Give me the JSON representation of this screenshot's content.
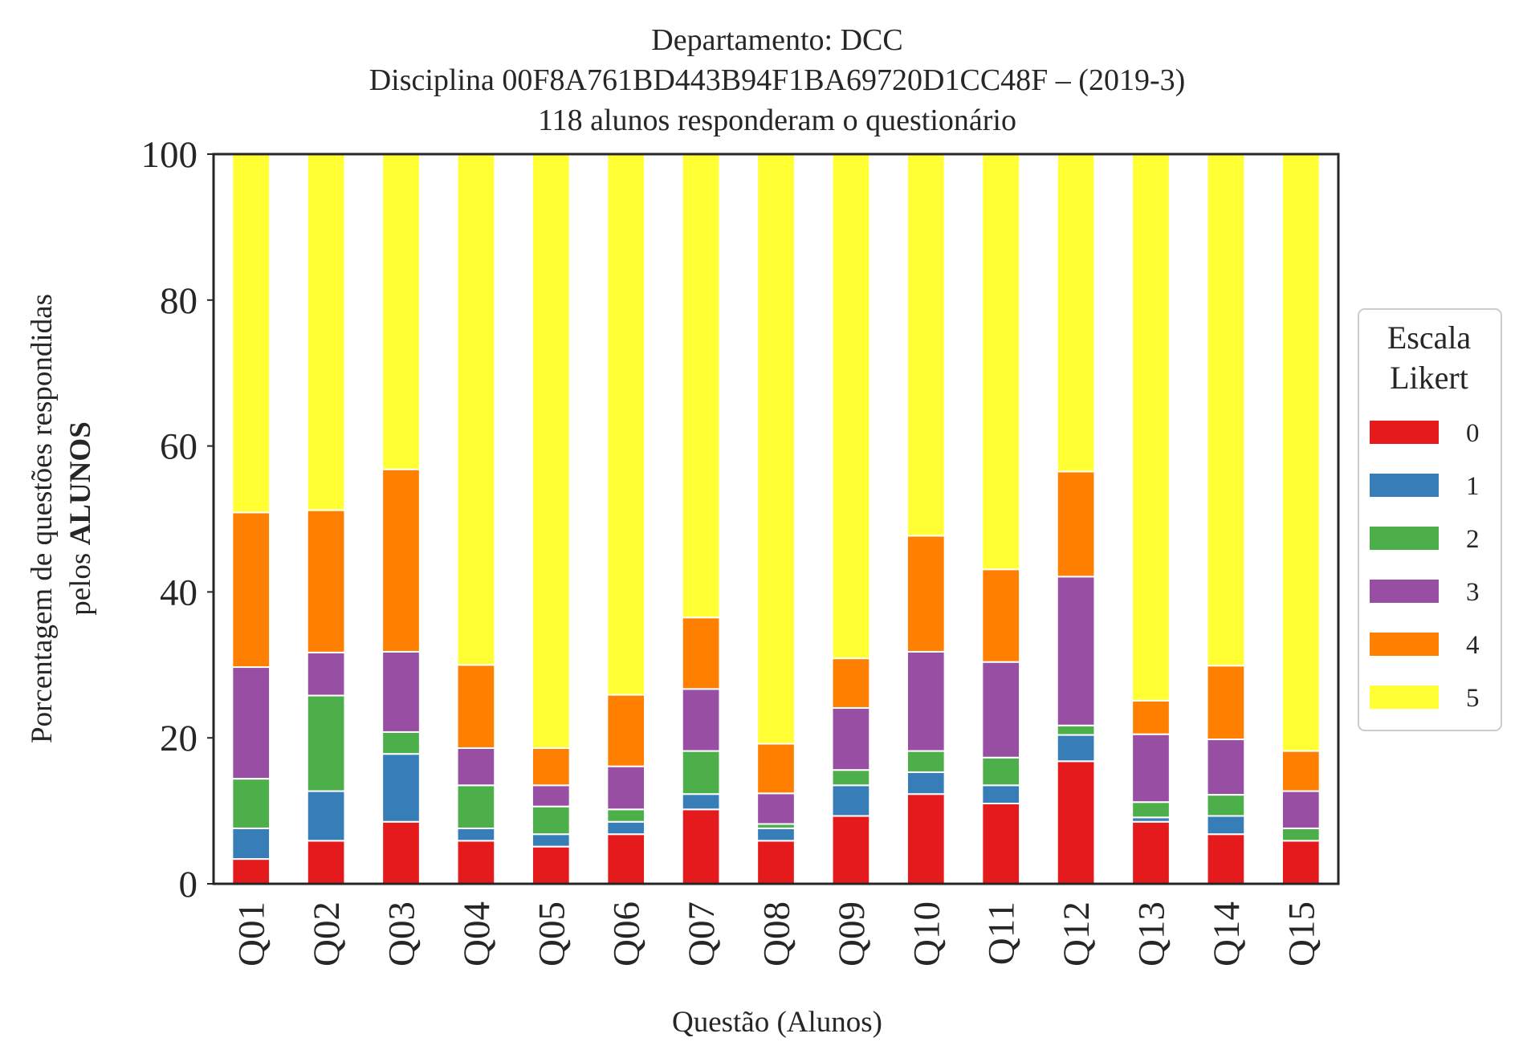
{
  "chart_data": {
    "type": "bar",
    "stacked": true,
    "title_lines": [
      "Departamento: DCC",
      "Disciplina 00F8A761BD443B94F1BA69720D1CC48F – (2019-3)",
      "118 alunos responderam o questionário"
    ],
    "xlabel": "Questão (Alunos)",
    "ylabel_line1": "Porcentagem de questões respondidas",
    "ylabel_line2_prefix": "pelos ",
    "ylabel_line2_bold": "ALUNOS",
    "ylim": [
      0,
      100
    ],
    "yticks": [
      "0",
      "20",
      "40",
      "60",
      "80",
      "100"
    ],
    "grid": false,
    "legend": {
      "title_lines": [
        "Escala",
        "Likert"
      ],
      "placement": "right"
    },
    "categories": [
      "Q01",
      "Q02",
      "Q03",
      "Q04",
      "Q05",
      "Q06",
      "Q07",
      "Q08",
      "Q09",
      "Q10",
      "Q11",
      "Q12",
      "Q13",
      "Q14",
      "Q15"
    ],
    "series": [
      {
        "name": "0",
        "color": "#e41a1c",
        "values": [
          3.4,
          5.9,
          8.5,
          5.9,
          5.1,
          6.8,
          10.2,
          5.9,
          9.3,
          12.3,
          11.0,
          16.8,
          8.5,
          6.8,
          5.9
        ]
      },
      {
        "name": "1",
        "color": "#377eb8",
        "values": [
          4.2,
          6.8,
          9.3,
          1.7,
          1.7,
          1.7,
          2.1,
          1.7,
          4.2,
          3.0,
          2.5,
          3.6,
          0.6,
          2.5,
          0
        ]
      },
      {
        "name": "2",
        "color": "#4daf4a",
        "values": [
          6.8,
          13.1,
          3.0,
          5.9,
          3.8,
          1.7,
          5.9,
          0.6,
          2.1,
          2.9,
          3.8,
          1.3,
          2.1,
          2.9,
          1.7
        ]
      },
      {
        "name": "3",
        "color": "#984ea3",
        "values": [
          15.3,
          5.9,
          11.0,
          5.1,
          2.9,
          5.9,
          8.5,
          4.2,
          8.5,
          13.6,
          13.1,
          20.4,
          9.3,
          7.6,
          5.1
        ]
      },
      {
        "name": "4",
        "color": "#ff7f00",
        "values": [
          21.2,
          19.5,
          25.0,
          11.4,
          5.1,
          9.8,
          9.8,
          6.8,
          6.8,
          15.9,
          12.7,
          14.4,
          4.6,
          10.1,
          5.5
        ]
      },
      {
        "name": "5",
        "color": "#ffff33",
        "values": [
          49.1,
          48.8,
          43.2,
          70.0,
          81.4,
          74.1,
          63.5,
          80.8,
          69.1,
          52.3,
          56.9,
          43.5,
          74.9,
          70.1,
          81.8
        ]
      }
    ]
  }
}
